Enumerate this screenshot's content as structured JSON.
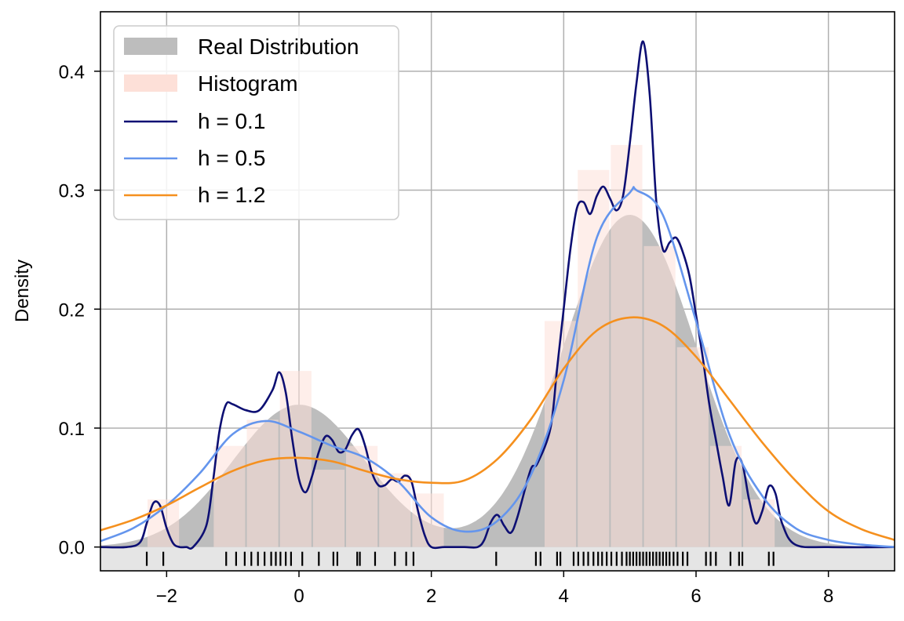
{
  "chart_data": {
    "type": "line",
    "title": "",
    "xlabel": "",
    "ylabel": "Density",
    "xlim": [
      -3,
      9
    ],
    "ylim": [
      -0.02,
      0.45
    ],
    "grid": true,
    "legend_position": "top-left",
    "xticks": [
      -2,
      0,
      2,
      4,
      6,
      8
    ],
    "xtick_labels": [
      "−2",
      "0",
      "2",
      "4",
      "6",
      "8"
    ],
    "yticks": [
      0.0,
      0.1,
      0.2,
      0.3,
      0.4
    ],
    "ytick_labels": [
      "0.0",
      "0.1",
      "0.2",
      "0.3",
      "0.4"
    ],
    "legend": [
      {
        "label": "Real Distribution",
        "kind": "patch",
        "color": "#bdbdbd"
      },
      {
        "label": "Histogram",
        "kind": "patch",
        "color": "#fde0d8"
      },
      {
        "label": "h = 0.1",
        "kind": "line",
        "color": "#0d0f73"
      },
      {
        "label": "h = 0.5",
        "kind": "line",
        "color": "#6495ed"
      },
      {
        "label": "h = 1.2",
        "kind": "line",
        "color": "#f5901e"
      }
    ],
    "real_distribution": {
      "name": "Real Distribution",
      "color": "#bdbdbd",
      "components": [
        {
          "weight": 0.3,
          "mean": 0.0,
          "sd": 1.0
        },
        {
          "weight": 0.7,
          "mean": 5.0,
          "sd": 1.0
        }
      ]
    },
    "histogram": {
      "name": "Histogram",
      "color": "#fde0d8",
      "bin_edges": [
        -2.3,
        -1.8,
        -1.3,
        -0.8,
        -0.3,
        0.2,
        0.7,
        1.2,
        1.7,
        2.2,
        2.7,
        3.2,
        3.7,
        4.2,
        4.7,
        5.2,
        5.7,
        6.2,
        6.7,
        7.2
      ],
      "values": [
        0.04,
        0.0,
        0.085,
        0.107,
        0.148,
        0.065,
        0.085,
        0.062,
        0.045,
        0.0,
        0.0,
        0.0,
        0.19,
        0.317,
        0.338,
        0.253,
        0.168,
        0.085,
        0.04
      ]
    },
    "series": [
      {
        "name": "h = 0.1",
        "color": "#0d0f73",
        "x": [
          -3.0,
          -2.6,
          -2.4,
          -2.3,
          -2.2,
          -2.1,
          -2.0,
          -1.9,
          -1.8,
          -1.7,
          -1.6,
          -1.4,
          -1.3,
          -1.2,
          -1.1,
          -1.0,
          -0.8,
          -0.6,
          -0.4,
          -0.3,
          -0.2,
          -0.1,
          0.0,
          0.1,
          0.2,
          0.3,
          0.4,
          0.5,
          0.6,
          0.7,
          0.8,
          0.9,
          1.0,
          1.1,
          1.2,
          1.3,
          1.4,
          1.5,
          1.6,
          1.7,
          1.8,
          1.9,
          2.0,
          2.2,
          2.5,
          2.7,
          2.8,
          2.9,
          3.0,
          3.1,
          3.2,
          3.3,
          3.5,
          3.6,
          3.8,
          3.9,
          4.0,
          4.1,
          4.2,
          4.3,
          4.4,
          4.5,
          4.6,
          4.7,
          4.8,
          4.9,
          5.0,
          5.1,
          5.2,
          5.3,
          5.4,
          5.5,
          5.6,
          5.7,
          5.8,
          5.9,
          6.0,
          6.1,
          6.2,
          6.3,
          6.4,
          6.5,
          6.6,
          6.7,
          6.8,
          6.9,
          7.0,
          7.1,
          7.2,
          7.3,
          7.5,
          8.0,
          9.0
        ],
        "values": [
          0.0,
          0.0,
          0.004,
          0.02,
          0.037,
          0.035,
          0.016,
          0.003,
          0.0,
          0.0,
          0.0,
          0.018,
          0.055,
          0.098,
          0.12,
          0.12,
          0.115,
          0.115,
          0.132,
          0.147,
          0.13,
          0.09,
          0.057,
          0.046,
          0.06,
          0.08,
          0.093,
          0.09,
          0.08,
          0.082,
          0.094,
          0.099,
          0.085,
          0.063,
          0.052,
          0.052,
          0.057,
          0.055,
          0.06,
          0.055,
          0.03,
          0.01,
          0.0,
          0.0,
          0.0,
          0.0,
          0.006,
          0.021,
          0.027,
          0.018,
          0.012,
          0.025,
          0.065,
          0.07,
          0.1,
          0.15,
          0.2,
          0.25,
          0.285,
          0.29,
          0.28,
          0.295,
          0.303,
          0.293,
          0.283,
          0.296,
          0.34,
          0.39,
          0.425,
          0.38,
          0.29,
          0.25,
          0.256,
          0.26,
          0.248,
          0.228,
          0.195,
          0.16,
          0.12,
          0.09,
          0.06,
          0.035,
          0.072,
          0.07,
          0.04,
          0.02,
          0.03,
          0.051,
          0.045,
          0.02,
          0.002,
          0.0,
          0.0
        ]
      },
      {
        "name": "h = 0.5",
        "color": "#6495ed",
        "x": [
          -3.0,
          -2.5,
          -2.0,
          -1.5,
          -1.0,
          -0.5,
          0.0,
          0.5,
          1.0,
          1.5,
          2.0,
          2.5,
          3.0,
          3.5,
          4.0,
          4.5,
          5.0,
          5.1,
          5.5,
          6.0,
          6.5,
          7.0,
          7.5,
          8.0,
          8.5,
          9.0
        ],
        "values": [
          0.005,
          0.016,
          0.035,
          0.062,
          0.095,
          0.106,
          0.097,
          0.085,
          0.075,
          0.055,
          0.025,
          0.013,
          0.022,
          0.06,
          0.14,
          0.26,
          0.298,
          0.3,
          0.279,
          0.19,
          0.095,
          0.043,
          0.016,
          0.006,
          0.002,
          0.0
        ]
      },
      {
        "name": "h = 1.2",
        "color": "#f5901e",
        "x": [
          -3.0,
          -2.5,
          -2.0,
          -1.5,
          -1.0,
          -0.5,
          0.0,
          0.5,
          1.0,
          1.5,
          2.0,
          2.5,
          3.0,
          3.5,
          4.0,
          4.5,
          5.0,
          5.5,
          6.0,
          6.5,
          7.0,
          7.5,
          8.0,
          8.5,
          9.0
        ],
        "values": [
          0.014,
          0.023,
          0.035,
          0.05,
          0.064,
          0.073,
          0.075,
          0.072,
          0.064,
          0.057,
          0.054,
          0.056,
          0.074,
          0.107,
          0.15,
          0.182,
          0.193,
          0.186,
          0.16,
          0.124,
          0.088,
          0.056,
          0.03,
          0.015,
          0.006
        ]
      }
    ],
    "rug": {
      "color": "#000000",
      "background": "#e5e5e5",
      "x": [
        -2.3,
        -2.05,
        -1.1,
        -0.95,
        -0.82,
        -0.72,
        -0.62,
        -0.52,
        -0.42,
        -0.35,
        -0.28,
        -0.2,
        -0.12,
        0.05,
        0.3,
        0.52,
        0.58,
        0.88,
        0.92,
        1.15,
        1.45,
        1.62,
        1.73,
        2.98,
        3.58,
        3.65,
        3.9,
        3.95,
        4.15,
        4.22,
        4.3,
        4.37,
        4.45,
        4.52,
        4.58,
        4.65,
        4.72,
        4.8,
        4.88,
        4.95,
        5.0,
        5.05,
        5.1,
        5.15,
        5.2,
        5.25,
        5.3,
        5.35,
        5.4,
        5.45,
        5.5,
        5.55,
        5.6,
        5.66,
        5.72,
        5.8,
        5.87,
        6.15,
        6.22,
        6.3,
        6.52,
        6.65,
        6.7,
        7.1,
        7.17
      ]
    }
  }
}
